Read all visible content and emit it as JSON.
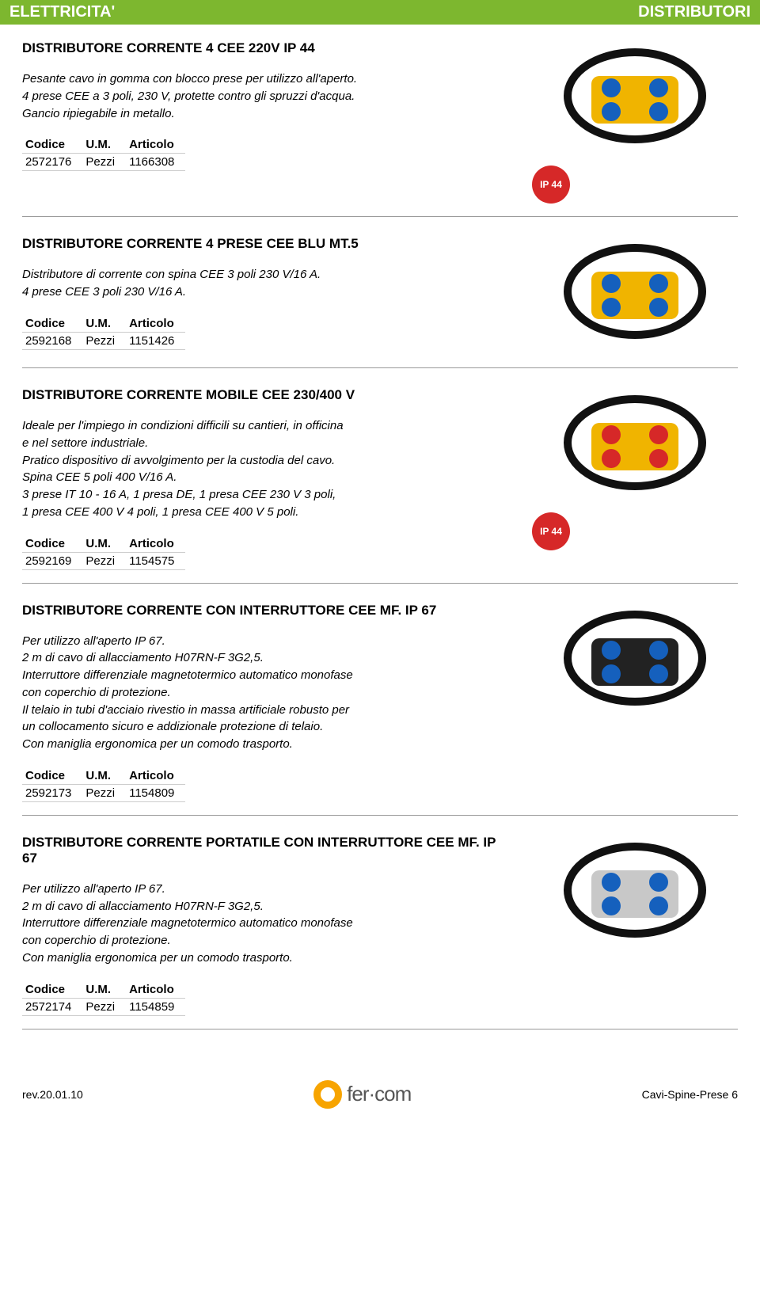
{
  "header": {
    "left": "ELETTRICITA'",
    "right": "DISTRIBUTORI",
    "bg_color": "#7db72f",
    "text_color": "#ffffff"
  },
  "products": [
    {
      "title": "DISTRIBUTORE CORRENTE 4 CEE 220V IP 44",
      "desc": "Pesante cavo in gomma con blocco prese per utilizzo all'aperto.\n4 prese CEE a 3 poli, 230 V, protette contro gli spruzzi d'acqua.\nGancio ripiegabile in metallo.",
      "headers": [
        "Codice",
        "U.M.",
        "Articolo"
      ],
      "rows": [
        [
          "2572176",
          "Pezzi",
          "1166308"
        ]
      ],
      "ip_badge": "IP 44",
      "img_colors": {
        "body": "#f0b400",
        "accent": "#1560bd",
        "cable": "#111"
      }
    },
    {
      "title": "DISTRIBUTORE CORRENTE 4 PRESE CEE BLU MT.5",
      "desc": "Distributore di corrente con spina CEE 3 poli 230 V/16 A.\n4 prese CEE 3 poli 230 V/16 A.",
      "headers": [
        "Codice",
        "U.M.",
        "Articolo"
      ],
      "rows": [
        [
          "2592168",
          "Pezzi",
          "1151426"
        ]
      ],
      "ip_badge": null,
      "img_colors": {
        "body": "#f0b400",
        "accent": "#1560bd",
        "cable": "#111"
      }
    },
    {
      "title": "DISTRIBUTORE CORRENTE MOBILE CEE 230/400 V",
      "desc": "Ideale per l'impiego in condizioni difficili su cantieri, in officina\ne nel settore industriale.\nPratico dispositivo di avvolgimento per la custodia del cavo.\nSpina CEE 5 poli 400 V/16 A.\n3 prese IT 10 - 16 A, 1 presa DE, 1 presa CEE 230 V 3 poli,\n1 presa CEE 400 V 4 poli, 1 presa CEE 400 V 5 poli.",
      "headers": [
        "Codice",
        "U.M.",
        "Articolo"
      ],
      "rows": [
        [
          "2592169",
          "Pezzi",
          "1154575"
        ]
      ],
      "ip_badge": "IP 44",
      "img_colors": {
        "body": "#f0b400",
        "accent": "#d62828",
        "cable": "#111"
      }
    },
    {
      "title": "DISTRIBUTORE CORRENTE CON INTERRUTTORE CEE MF. IP 67",
      "desc": "Per utilizzo all'aperto IP 67.\n2 m di cavo di allacciamento H07RN-F 3G2,5.\nInterruttore differenziale magnetotermico automatico monofase\ncon coperchio di protezione.\nIl telaio in tubi d'acciaio rivestio in massa artificiale robusto per\nun collocamento sicuro e addizionale protezione di telaio.\nCon maniglia ergonomica per un comodo trasporto.",
      "headers": [
        "Codice",
        "U.M.",
        "Articolo"
      ],
      "rows": [
        [
          "2592173",
          "Pezzi",
          "1154809"
        ]
      ],
      "ip_badge": null,
      "img_colors": {
        "body": "#222",
        "accent": "#1560bd",
        "cable": "#111"
      }
    },
    {
      "title": "DISTRIBUTORE CORRENTE PORTATILE CON INTERRUTTORE CEE MF. IP 67",
      "desc": "Per utilizzo all'aperto IP 67.\n2 m di cavo di allacciamento H07RN-F 3G2,5.\nInterruttore differenziale magnetotermico automatico monofase\ncon coperchio di protezione.\nCon maniglia ergonomica per un comodo trasporto.",
      "headers": [
        "Codice",
        "U.M.",
        "Articolo"
      ],
      "rows": [
        [
          "2572174",
          "Pezzi",
          "1154859"
        ]
      ],
      "ip_badge": null,
      "img_colors": {
        "body": "#c8c8c8",
        "accent": "#1560bd",
        "cable": "#111"
      }
    }
  ],
  "footer": {
    "rev": "rev.20.01.10",
    "logo_text": "fer·com",
    "page": "Cavi-Spine-Prese 6",
    "logo_color": "#f7a400"
  }
}
